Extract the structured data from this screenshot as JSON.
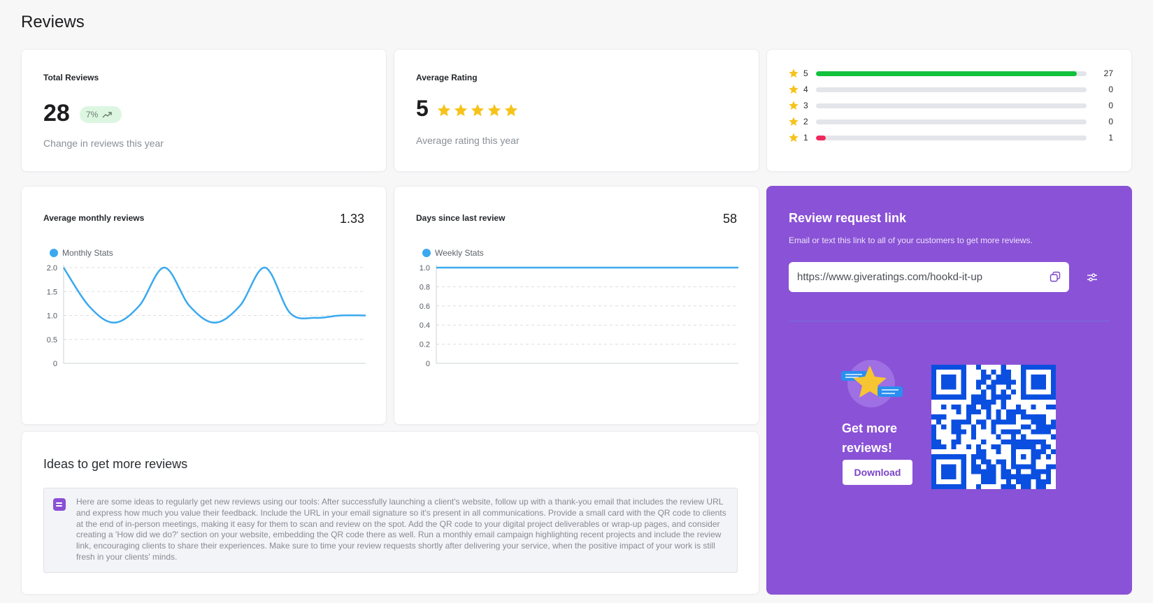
{
  "page": {
    "title": "Reviews"
  },
  "total_reviews": {
    "label": "Total Reviews",
    "value": "28",
    "change": "7%",
    "caption": "Change in reviews this year"
  },
  "average_rating": {
    "label": "Average Rating",
    "value": "5",
    "stars": 5,
    "caption": "Average rating this year"
  },
  "distribution": [
    {
      "stars": "5",
      "count": "27",
      "fraction": 0.964,
      "color": "#12c13c"
    },
    {
      "stars": "4",
      "count": "0",
      "fraction": 0,
      "color": "#12c13c"
    },
    {
      "stars": "3",
      "count": "0",
      "fraction": 0,
      "color": "#12c13c"
    },
    {
      "stars": "2",
      "count": "0",
      "fraction": 0,
      "color": "#12c13c"
    },
    {
      "stars": "1",
      "count": "1",
      "fraction": 0.036,
      "color": "#f0295b"
    }
  ],
  "monthly": {
    "label": "Average monthly reviews",
    "value": "1.33"
  },
  "weekly": {
    "label": "Days since last review",
    "value": "58"
  },
  "chart_data": [
    {
      "type": "line",
      "series": [
        {
          "name": "Monthly Stats",
          "color": "#3aa9ef",
          "x": [
            0,
            1,
            2,
            3,
            4,
            5,
            6,
            7,
            8,
            9,
            10,
            11,
            12
          ],
          "values": [
            2.0,
            1.2,
            0.85,
            1.2,
            2.0,
            1.2,
            0.85,
            1.2,
            2.0,
            1.05,
            0.95,
            1.0,
            1.0
          ]
        }
      ],
      "yticks": [
        "0",
        "0.5",
        "1.0",
        "1.5",
        "2.0"
      ],
      "ylim": [
        0,
        2
      ],
      "grid": true
    },
    {
      "type": "line",
      "series": [
        {
          "name": "Weekly Stats",
          "color": "#3aa9ef",
          "x": [
            0,
            1
          ],
          "values": [
            1.0,
            1.0
          ]
        }
      ],
      "yticks": [
        "0",
        "0.2",
        "0.4",
        "0.6",
        "0.8",
        "1.0"
      ],
      "ylim": [
        0,
        1
      ],
      "grid": true
    }
  ],
  "ideas": {
    "title": "Ideas to get more reviews",
    "text": "Here are some ideas to regularly get new reviews using our tools: After successfully launching a client's website, follow up with a thank-you email that includes the review URL and express how much you value their feedback. Include the URL in your email signature so it's present in all communications. Provide a small card with the QR code to clients at the end of in-person meetings, making it easy for them to scan and review on the spot. Add the QR code to your digital project deliverables or wrap-up pages, and consider creating a 'How did we do?' section on your website, embedding the QR code there as well. Run a monthly email campaign highlighting recent projects and include the review link, encouraging clients to share their experiences. Make sure to time your review requests shortly after delivering your service, when the positive impact of your work is still fresh in your clients' minds."
  },
  "request": {
    "title": "Review request link",
    "subtitle": "Email or text this link to all of your customers to get more reviews.",
    "link": "https://www.giveratings.com/hookd-it-up",
    "get_more": "Get more reviews!",
    "download_label": "Download",
    "accent": "#8a52d6",
    "qr_color": "#0b4fe0"
  },
  "icons": {
    "star": "star-icon",
    "trend": "trending-up-icon",
    "copy": "copy-icon",
    "settings": "sliders-icon",
    "note": "note-icon"
  }
}
